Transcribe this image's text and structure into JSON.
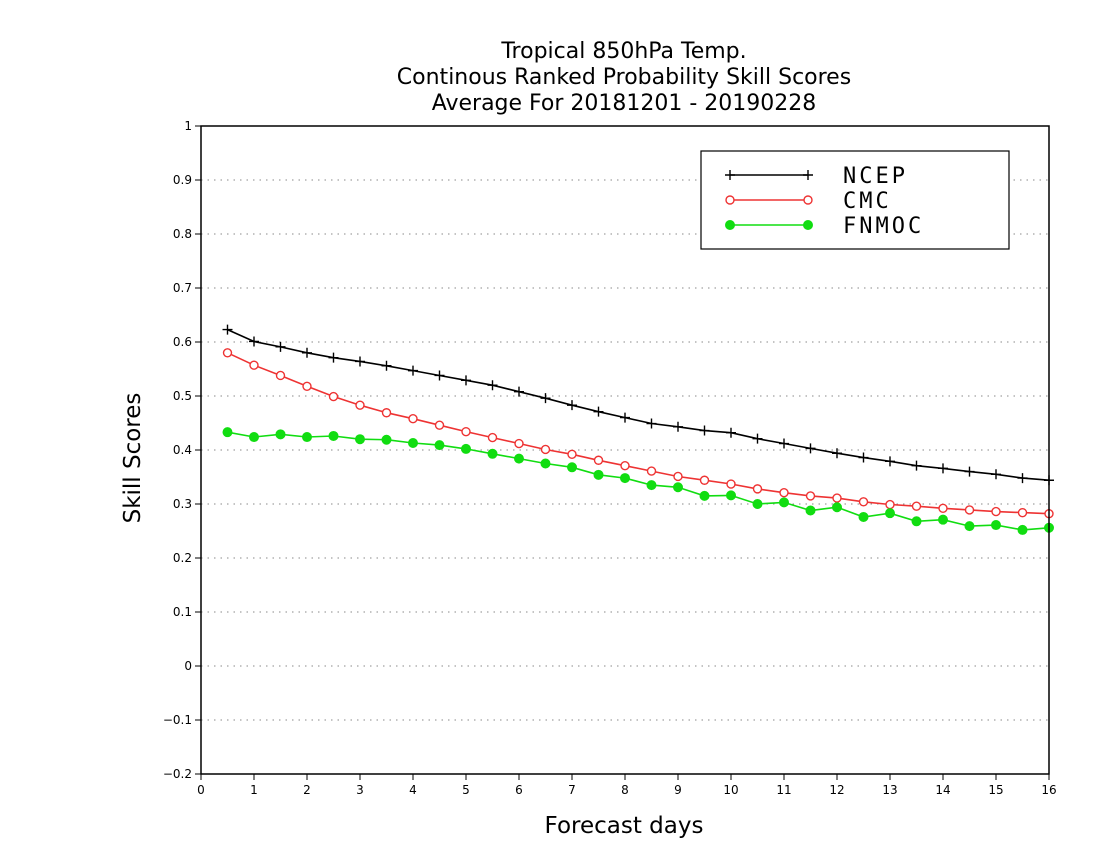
{
  "chart_data": {
    "type": "line",
    "title_lines": [
      "Tropical 850hPa Temp.",
      "Continous Ranked Probability Skill Scores",
      "Average For 20181201 - 20190228"
    ],
    "xlabel": "Forecast days",
    "ylabel": "Skill Scores",
    "xlim": [
      0,
      16
    ],
    "ylim": [
      -0.2,
      1
    ],
    "x_ticks": [
      "0",
      "1",
      "2",
      "3",
      "4",
      "5",
      "6",
      "7",
      "8",
      "9",
      "10",
      "11",
      "12",
      "13",
      "14",
      "15",
      "16"
    ],
    "y_ticks": [
      "-0.2",
      "-0.1",
      "0",
      "0.1",
      "0.2",
      "0.3",
      "0.4",
      "0.5",
      "0.6",
      "0.7",
      "0.8",
      "0.9",
      "1"
    ],
    "grid": "horizontal dotted",
    "legend_position": "top-right",
    "x": [
      0.5,
      1,
      1.5,
      2,
      2.5,
      3,
      3.5,
      4,
      4.5,
      5,
      5.5,
      6,
      6.5,
      7,
      7.5,
      8,
      8.5,
      9,
      9.5,
      10,
      10.5,
      11,
      11.5,
      12,
      12.5,
      13,
      13.5,
      14,
      14.5,
      15,
      15.5,
      16
    ],
    "series": [
      {
        "name": "NCEP",
        "color": "#000000",
        "marker": "plus",
        "values": [
          0.623,
          0.601,
          0.591,
          0.58,
          0.571,
          0.564,
          0.556,
          0.547,
          0.538,
          0.529,
          0.52,
          0.508,
          0.496,
          0.483,
          0.471,
          0.46,
          0.449,
          0.443,
          0.436,
          0.432,
          0.421,
          0.412,
          0.403,
          0.394,
          0.386,
          0.379,
          0.371,
          0.366,
          0.36,
          0.355,
          0.348,
          0.344
        ]
      },
      {
        "name": "CMC",
        "color": "#ee3333",
        "marker": "open-circle",
        "values": [
          0.58,
          0.557,
          0.538,
          0.518,
          0.499,
          0.483,
          0.469,
          0.458,
          0.446,
          0.434,
          0.423,
          0.412,
          0.401,
          0.392,
          0.381,
          0.371,
          0.361,
          0.351,
          0.344,
          0.337,
          0.328,
          0.321,
          0.315,
          0.311,
          0.304,
          0.299,
          0.296,
          0.292,
          0.289,
          0.286,
          0.284,
          0.282
        ]
      },
      {
        "name": "FNMOC",
        "color": "#11dd11",
        "marker": "filled-circle",
        "values": [
          0.433,
          0.424,
          0.429,
          0.424,
          0.426,
          0.42,
          0.419,
          0.413,
          0.409,
          0.402,
          0.393,
          0.384,
          0.375,
          0.368,
          0.354,
          0.348,
          0.335,
          0.331,
          0.315,
          0.316,
          0.3,
          0.303,
          0.288,
          0.294,
          0.276,
          0.283,
          0.268,
          0.271,
          0.259,
          0.261,
          0.252,
          0.256
        ]
      }
    ]
  }
}
